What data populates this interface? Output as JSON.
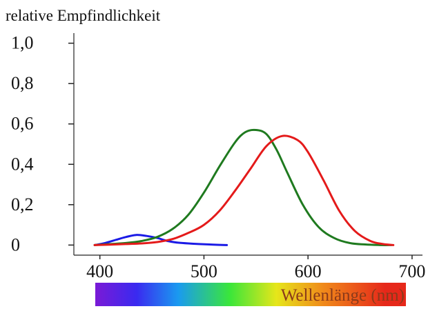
{
  "chart_data": {
    "type": "line",
    "title": "",
    "ylabel": "relative Empfindlichkeit",
    "xlabel": "Wellenlänge (nm)",
    "xlim": [
      375,
      710
    ],
    "ylim": [
      -0.05,
      1.05
    ],
    "xticks": [
      {
        "value": 400,
        "label": "400"
      },
      {
        "value": 500,
        "label": "500"
      },
      {
        "value": 600,
        "label": "600"
      },
      {
        "value": 700,
        "label": "700"
      }
    ],
    "yticks": [
      {
        "value": 0.0,
        "label": "0"
      },
      {
        "value": 0.2,
        "label": "0,2"
      },
      {
        "value": 0.4,
        "label": "0,4"
      },
      {
        "value": 0.6,
        "label": "0,6"
      },
      {
        "value": 0.8,
        "label": "0,8"
      },
      {
        "value": 1.0,
        "label": "1,0"
      }
    ],
    "grid": false,
    "series": [
      {
        "name": "blue",
        "color": "#1a1ae6",
        "x": [
          395,
          405,
          415,
          425,
          435,
          445,
          455,
          465,
          475,
          485,
          495,
          505,
          515,
          522
        ],
        "y": [
          0.0,
          0.01,
          0.025,
          0.04,
          0.05,
          0.045,
          0.035,
          0.02,
          0.012,
          0.008,
          0.005,
          0.003,
          0.001,
          0.0
        ]
      },
      {
        "name": "green",
        "color": "#1f7a1f",
        "x": [
          395,
          410,
          425,
          440,
          455,
          470,
          485,
          500,
          515,
          530,
          540,
          550,
          560,
          570,
          580,
          595,
          610,
          625,
          640,
          655,
          670,
          680
        ],
        "y": [
          0.0,
          0.005,
          0.01,
          0.02,
          0.04,
          0.08,
          0.15,
          0.26,
          0.39,
          0.51,
          0.56,
          0.57,
          0.55,
          0.47,
          0.36,
          0.2,
          0.09,
          0.035,
          0.01,
          0.003,
          0.0,
          0.0
        ]
      },
      {
        "name": "red",
        "color": "#e41a1a",
        "x": [
          395,
          410,
          425,
          440,
          455,
          470,
          485,
          500,
          515,
          530,
          545,
          560,
          575,
          590,
          600,
          615,
          630,
          645,
          660,
          672,
          682
        ],
        "y": [
          0.0,
          0.002,
          0.005,
          0.008,
          0.015,
          0.03,
          0.06,
          0.1,
          0.17,
          0.27,
          0.38,
          0.49,
          0.54,
          0.52,
          0.46,
          0.32,
          0.17,
          0.07,
          0.02,
          0.005,
          0.0
        ]
      }
    ],
    "spectrum_band": {
      "range": [
        400,
        700
      ],
      "label": "Wellenlänge (nm)",
      "stops": [
        {
          "value": 400,
          "color": "#7a1ad6"
        },
        {
          "value": 440,
          "color": "#3a2af0"
        },
        {
          "value": 480,
          "color": "#1a9af0"
        },
        {
          "value": 530,
          "color": "#3ae63a"
        },
        {
          "value": 575,
          "color": "#e6e61a"
        },
        {
          "value": 620,
          "color": "#f08a1a"
        },
        {
          "value": 680,
          "color": "#e6281a"
        }
      ]
    }
  }
}
